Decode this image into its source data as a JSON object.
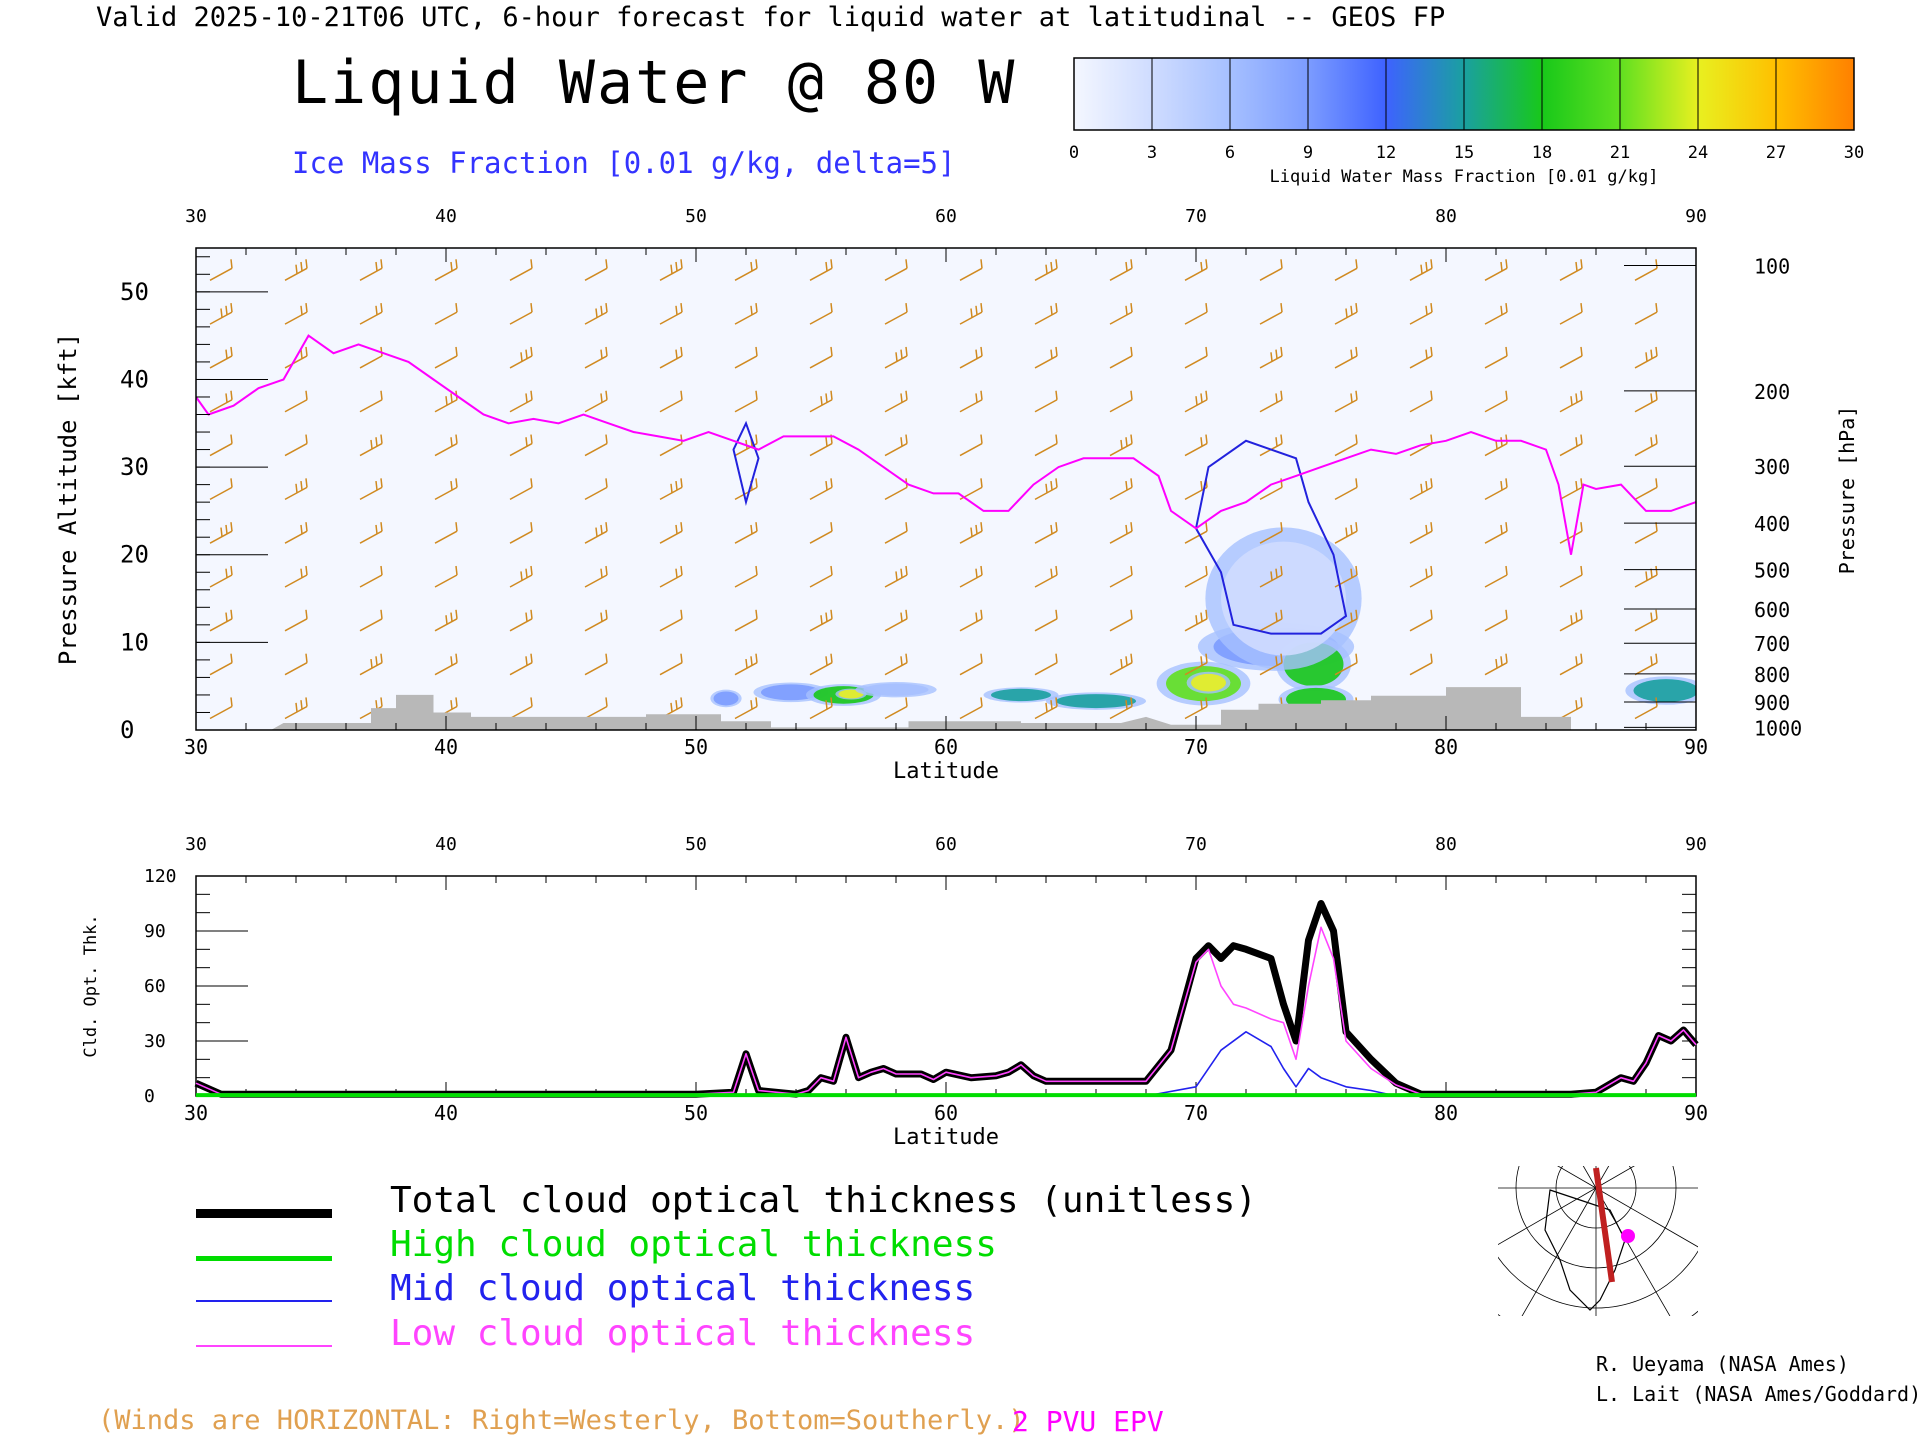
{
  "header": {
    "valid_line": "Valid 2025-10-21T06 UTC, 6-hour forecast for liquid water at latitudinal -- GEOS FP",
    "main_title": "Liquid Water @ 80 W",
    "ice_caption": "Ice Mass Fraction [0.01 g/kg, delta=5]"
  },
  "colorbar": {
    "label": "Liquid Water Mass Fraction [0.01 g/kg]",
    "ticks": [
      "0",
      "3",
      "6",
      "9",
      "12",
      "15",
      "18",
      "21",
      "24",
      "27",
      "30"
    ],
    "colors": [
      "#f4f7ff",
      "#cfdcff",
      "#a6c0ff",
      "#7c9cff",
      "#3e62ff",
      "#1aa0a0",
      "#18c81a",
      "#60e020",
      "#e8f020",
      "#ffc000",
      "#ff8000",
      "#ff3000"
    ]
  },
  "colors": {
    "epv": "#ff00ff",
    "wind_barbs": "#d08a20",
    "ice_contour": "#2222dd",
    "terrain": "#b8b8b8",
    "total": "#000000",
    "high": "#00dd00",
    "mid": "#2222ee",
    "low": "#ff44ff"
  },
  "chart_data": [
    {
      "type": "heatmap",
      "title": "Liquid Water @ 80 W",
      "xlabel": "Latitude",
      "ylabel": "Pressure Altitude [kft]",
      "ylabel_right": "Pressure [hPa]",
      "xlim": [
        30,
        90
      ],
      "ylim": [
        0,
        55
      ],
      "x_ticks": [
        "30",
        "40",
        "50",
        "60",
        "70",
        "80",
        "90"
      ],
      "y_ticks": [
        "0",
        "10",
        "20",
        "30",
        "40",
        "50"
      ],
      "pressure_ticks": [
        {
          "label": "100",
          "kft": 53.0
        },
        {
          "label": "200",
          "kft": 38.7
        },
        {
          "label": "300",
          "kft": 30.1
        },
        {
          "label": "400",
          "kft": 23.6
        },
        {
          "label": "500",
          "kft": 18.3
        },
        {
          "label": "600",
          "kft": 13.8
        },
        {
          "label": "700",
          "kft": 9.9
        },
        {
          "label": "800",
          "kft": 6.4
        },
        {
          "label": "900",
          "kft": 3.2
        },
        {
          "label": "1000",
          "kft": 0.3
        }
      ],
      "epv_2pvu": [
        [
          30,
          38
        ],
        [
          30.5,
          36
        ],
        [
          31.5,
          37
        ],
        [
          32.5,
          39
        ],
        [
          33.5,
          40
        ],
        [
          34.5,
          45
        ],
        [
          35.5,
          43
        ],
        [
          36.5,
          44
        ],
        [
          37.5,
          43
        ],
        [
          38.5,
          42
        ],
        [
          39.5,
          40
        ],
        [
          40.5,
          38
        ],
        [
          41.5,
          36
        ],
        [
          42.5,
          35
        ],
        [
          43.5,
          35.5
        ],
        [
          44.5,
          35
        ],
        [
          45.5,
          36
        ],
        [
          46.5,
          35
        ],
        [
          47.5,
          34
        ],
        [
          48.5,
          33.5
        ],
        [
          49.5,
          33
        ],
        [
          50.5,
          34
        ],
        [
          51.5,
          33
        ],
        [
          52.5,
          32
        ],
        [
          53.5,
          33.5
        ],
        [
          54.5,
          33.5
        ],
        [
          55.5,
          33.5
        ],
        [
          56.5,
          32
        ],
        [
          57.5,
          30
        ],
        [
          58.5,
          28
        ],
        [
          59.5,
          27
        ],
        [
          60.5,
          27
        ],
        [
          61.5,
          25
        ],
        [
          62.5,
          25
        ],
        [
          63.5,
          28
        ],
        [
          64.5,
          30
        ],
        [
          65.5,
          31
        ],
        [
          66.5,
          31
        ],
        [
          67.5,
          31
        ],
        [
          68.5,
          29
        ],
        [
          69,
          25
        ],
        [
          70,
          23
        ],
        [
          71,
          25
        ],
        [
          72,
          26
        ],
        [
          73,
          28
        ],
        [
          74,
          29
        ],
        [
          75,
          30
        ],
        [
          76,
          31
        ],
        [
          77,
          32
        ],
        [
          78,
          31.5
        ],
        [
          79,
          32.5
        ],
        [
          80,
          33
        ],
        [
          81,
          34
        ],
        [
          82,
          33
        ],
        [
          83,
          33
        ],
        [
          84,
          32
        ],
        [
          84.5,
          28
        ],
        [
          85,
          20
        ],
        [
          85.5,
          28
        ],
        [
          86,
          27.5
        ],
        [
          87,
          28
        ],
        [
          88,
          25
        ],
        [
          89,
          25
        ],
        [
          90,
          26
        ]
      ],
      "ice_contours": [
        [
          [
            51.5,
            32
          ],
          [
            52,
            35
          ],
          [
            52.5,
            31
          ],
          [
            52,
            26
          ],
          [
            51.5,
            32
          ]
        ],
        [
          [
            70.5,
            30
          ],
          [
            72,
            33
          ],
          [
            74,
            31
          ],
          [
            74.5,
            26
          ],
          [
            75.5,
            20
          ],
          [
            76,
            13
          ],
          [
            75,
            11
          ],
          [
            73,
            11
          ],
          [
            71.5,
            12
          ],
          [
            71,
            18
          ],
          [
            70,
            23
          ],
          [
            70.5,
            30
          ]
        ]
      ],
      "lwc_blobs": [
        {
          "lat": 51.2,
          "kft": 3.6,
          "rlat": 0.5,
          "rkft": 0.8,
          "value": 9
        },
        {
          "lat": 53.8,
          "kft": 4.3,
          "rlat": 1.2,
          "rkft": 0.9,
          "value": 8
        },
        {
          "lat": 55.9,
          "kft": 4.0,
          "rlat": 1.2,
          "rkft": 1.0,
          "value": 18
        },
        {
          "lat": 56.2,
          "kft": 4.1,
          "rlat": 0.5,
          "rkft": 0.5,
          "value": 24
        },
        {
          "lat": 58.0,
          "kft": 4.6,
          "rlat": 1.3,
          "rkft": 0.7,
          "value": 7
        },
        {
          "lat": 63.0,
          "kft": 4.0,
          "rlat": 1.2,
          "rkft": 0.7,
          "value": 16
        },
        {
          "lat": 66.0,
          "kft": 3.3,
          "rlat": 1.6,
          "rkft": 0.8,
          "value": 14
        },
        {
          "lat": 70.3,
          "kft": 5.3,
          "rlat": 1.5,
          "rkft": 2.0,
          "value": 20
        },
        {
          "lat": 70.5,
          "kft": 5.4,
          "rlat": 0.7,
          "rkft": 1.0,
          "value": 25
        },
        {
          "lat": 73.2,
          "kft": 9.5,
          "rlat": 2.5,
          "rkft": 2.2,
          "value": 10
        },
        {
          "lat": 74.7,
          "kft": 7.5,
          "rlat": 1.2,
          "rkft": 2.5,
          "value": 19
        },
        {
          "lat": 74.8,
          "kft": 3.5,
          "rlat": 1.2,
          "rkft": 1.3,
          "value": 18
        },
        {
          "lat": 88.8,
          "kft": 4.5,
          "rlat": 1.3,
          "rkft": 1.3,
          "value": 14
        },
        {
          "lat": 73.5,
          "kft": 15.0,
          "rlat": 2.5,
          "rkft": 6.5,
          "value": 4
        }
      ],
      "terrain": [
        [
          30,
          0
        ],
        [
          33,
          0
        ],
        [
          33.5,
          0.8
        ],
        [
          37,
          0.8
        ],
        [
          37,
          2.5
        ],
        [
          38,
          2.5
        ],
        [
          38,
          4.0
        ],
        [
          39.5,
          4.0
        ],
        [
          39.5,
          2.0
        ],
        [
          41,
          2.0
        ],
        [
          41,
          1.5
        ],
        [
          48,
          1.5
        ],
        [
          48,
          1.8
        ],
        [
          51,
          1.8
        ],
        [
          51,
          1.0
        ],
        [
          53,
          1.0
        ],
        [
          53,
          0.3
        ],
        [
          58.5,
          0.3
        ],
        [
          58.5,
          1.0
        ],
        [
          63,
          1.0
        ],
        [
          63,
          0.8
        ],
        [
          67,
          0.8
        ],
        [
          68,
          1.5
        ],
        [
          69,
          0.6
        ],
        [
          71,
          0.6
        ],
        [
          71,
          2.3
        ],
        [
          72.5,
          2.3
        ],
        [
          72.5,
          3.0
        ],
        [
          75,
          3.0
        ],
        [
          75,
          3.4
        ],
        [
          77,
          3.4
        ],
        [
          77,
          3.9
        ],
        [
          80,
          3.9
        ],
        [
          80,
          4.9
        ],
        [
          83,
          4.9
        ],
        [
          83,
          1.5
        ],
        [
          85,
          1.5
        ],
        [
          85,
          0
        ],
        [
          30,
          0
        ]
      ]
    },
    {
      "type": "line",
      "xlabel": "Latitude",
      "ylabel": "Cld. Opt. Thk.",
      "xlim": [
        30,
        90
      ],
      "ylim": [
        0,
        120
      ],
      "x_ticks": [
        "30",
        "40",
        "50",
        "60",
        "70",
        "80",
        "90"
      ],
      "y_ticks": [
        "0",
        "30",
        "60",
        "90",
        "120"
      ],
      "series": [
        {
          "name": "Total cloud optical thickness (unitless)",
          "color": "#000000",
          "points": [
            [
              30,
              7
            ],
            [
              31,
              1
            ],
            [
              40,
              1
            ],
            [
              50,
              1
            ],
            [
              51.5,
              2
            ],
            [
              52,
              23
            ],
            [
              52.5,
              3
            ],
            [
              54,
              1
            ],
            [
              54.5,
              3
            ],
            [
              55,
              10
            ],
            [
              55.5,
              8
            ],
            [
              56,
              32
            ],
            [
              56.5,
              10
            ],
            [
              57,
              13
            ],
            [
              57.5,
              15
            ],
            [
              58,
              12
            ],
            [
              59,
              12
            ],
            [
              59.5,
              9
            ],
            [
              60,
              13
            ],
            [
              61,
              10
            ],
            [
              62,
              11
            ],
            [
              62.5,
              13
            ],
            [
              63,
              17
            ],
            [
              63.5,
              11
            ],
            [
              64,
              8
            ],
            [
              66,
              8
            ],
            [
              68,
              8
            ],
            [
              69,
              25
            ],
            [
              70,
              75
            ],
            [
              70.5,
              82
            ],
            [
              71,
              75
            ],
            [
              71.5,
              82
            ],
            [
              72,
              80
            ],
            [
              73,
              75
            ],
            [
              73.5,
              50
            ],
            [
              74,
              30
            ],
            [
              74.5,
              85
            ],
            [
              75,
              105
            ],
            [
              75.5,
              90
            ],
            [
              76,
              35
            ],
            [
              77,
              20
            ],
            [
              78,
              7
            ],
            [
              79,
              1
            ],
            [
              85,
              1
            ],
            [
              86,
              2
            ],
            [
              87,
              10
            ],
            [
              87.5,
              8
            ],
            [
              88,
              18
            ],
            [
              88.5,
              33
            ],
            [
              89,
              30
            ],
            [
              89.5,
              36
            ],
            [
              90,
              28
            ]
          ]
        },
        {
          "name": "High cloud optical thickness",
          "color": "#00dd00",
          "points": [
            [
              30,
              0.5
            ],
            [
              90,
              0.5
            ]
          ]
        },
        {
          "name": "Mid cloud optical thickness",
          "color": "#2222ee",
          "points": [
            [
              30,
              0
            ],
            [
              68,
              0
            ],
            [
              70,
              5
            ],
            [
              71,
              25
            ],
            [
              72,
              35
            ],
            [
              73,
              27
            ],
            [
              73.5,
              15
            ],
            [
              74,
              5
            ],
            [
              74.5,
              15
            ],
            [
              75,
              10
            ],
            [
              76,
              5
            ],
            [
              77,
              3
            ],
            [
              78,
              0
            ],
            [
              90,
              0
            ]
          ]
        },
        {
          "name": "Low cloud optical thickness",
          "color": "#ff44ff",
          "points": [
            [
              30,
              7
            ],
            [
              31,
              1
            ],
            [
              40,
              1
            ],
            [
              50,
              1
            ],
            [
              51.5,
              2
            ],
            [
              52,
              23
            ],
            [
              52.5,
              3
            ],
            [
              54,
              1
            ],
            [
              54.5,
              3
            ],
            [
              55,
              10
            ],
            [
              55.5,
              8
            ],
            [
              56,
              32
            ],
            [
              56.5,
              10
            ],
            [
              57,
              13
            ],
            [
              57.5,
              15
            ],
            [
              58,
              12
            ],
            [
              59,
              12
            ],
            [
              59.5,
              9
            ],
            [
              60,
              13
            ],
            [
              61,
              10
            ],
            [
              62,
              11
            ],
            [
              62.5,
              13
            ],
            [
              63,
              17
            ],
            [
              63.5,
              11
            ],
            [
              64,
              8
            ],
            [
              66,
              8
            ],
            [
              68,
              8
            ],
            [
              69,
              25
            ],
            [
              70,
              73
            ],
            [
              70.5,
              80
            ],
            [
              71,
              60
            ],
            [
              71.5,
              50
            ],
            [
              72,
              48
            ],
            [
              73,
              42
            ],
            [
              73.5,
              40
            ],
            [
              74,
              20
            ],
            [
              74.5,
              60
            ],
            [
              75,
              92
            ],
            [
              75.5,
              75
            ],
            [
              76,
              30
            ],
            [
              77,
              15
            ],
            [
              78,
              6
            ],
            [
              79,
              1
            ],
            [
              85,
              1
            ],
            [
              86,
              2
            ],
            [
              87,
              10
            ],
            [
              87.5,
              8
            ],
            [
              88,
              18
            ],
            [
              88.5,
              33
            ],
            [
              89,
              30
            ],
            [
              89.5,
              36
            ],
            [
              90,
              28
            ]
          ]
        }
      ]
    }
  ],
  "wind_note": "(Winds are HORIZONTAL: Right=Westerly, Bottom=Southerly.)",
  "pv_note": "2 PVU EPV",
  "credits": [
    "R. Ueyama (NASA Ames)",
    "L. Lait (NASA Ames/Goddard)"
  ],
  "locator_map": {
    "icon": "globe-map-icon"
  }
}
